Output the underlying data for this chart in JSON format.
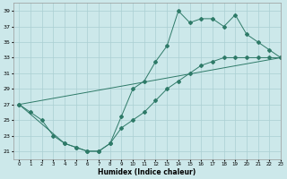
{
  "line1_x": [
    0,
    1,
    2,
    3,
    4,
    5,
    6,
    7,
    8,
    9,
    10,
    11,
    12,
    13,
    14,
    15,
    16,
    17,
    18,
    19,
    20,
    21,
    22,
    23
  ],
  "line1_y": [
    27,
    26,
    25,
    23,
    22,
    21.5,
    21,
    21,
    22,
    25.5,
    29,
    30,
    32.5,
    34.5,
    39,
    37.5,
    38,
    38,
    37,
    38.5,
    36,
    35,
    34,
    33
  ],
  "line2_x": [
    0,
    23
  ],
  "line2_y": [
    27,
    33
  ],
  "line3_x": [
    0,
    4,
    5,
    6,
    7,
    8,
    9,
    10,
    11,
    12,
    13,
    14,
    15,
    16,
    17,
    18,
    19,
    20,
    21,
    22,
    23
  ],
  "line3_y": [
    27,
    22,
    21.5,
    21,
    21,
    22,
    24,
    25,
    26,
    27.5,
    29,
    30,
    31,
    32,
    32.5,
    33,
    33,
    33,
    33,
    33,
    33
  ],
  "color": "#2e7a68",
  "bg_color": "#cce8ea",
  "grid_color": "#aacfd2",
  "xlabel": "Humidex (Indice chaleur)",
  "ylim": [
    20,
    40
  ],
  "xlim": [
    -0.5,
    23
  ],
  "yticks": [
    21,
    23,
    25,
    27,
    29,
    31,
    33,
    35,
    37,
    39
  ],
  "xticks": [
    0,
    1,
    2,
    3,
    4,
    5,
    6,
    7,
    8,
    9,
    10,
    11,
    12,
    13,
    14,
    15,
    16,
    17,
    18,
    19,
    20,
    21,
    22,
    23
  ]
}
